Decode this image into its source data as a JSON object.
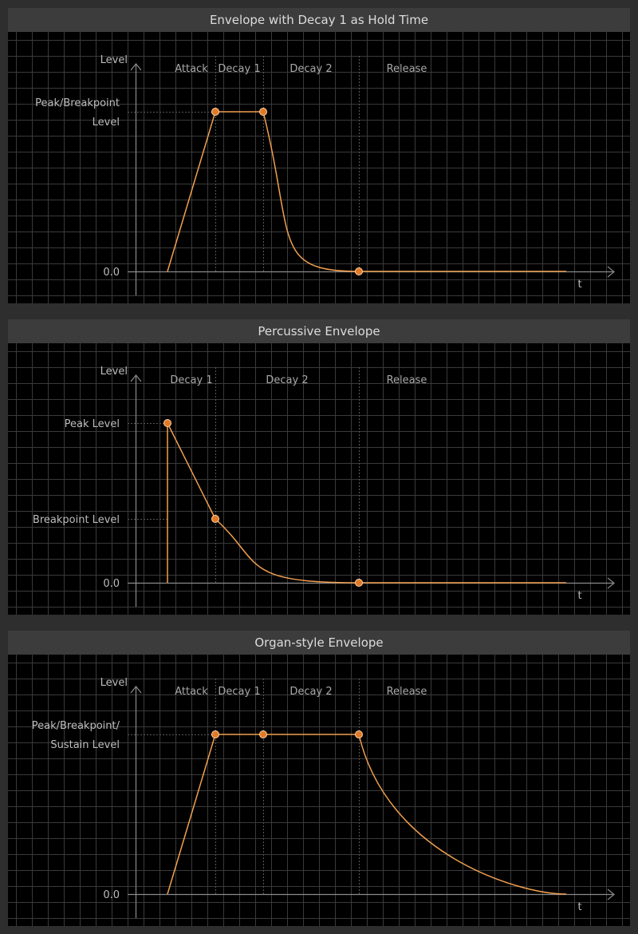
{
  "colors": {
    "background": "#000000",
    "panel_header": "#3c3c3c",
    "grid": "#3a3a3a",
    "axis": "#8a8a8a",
    "divider": "#5a5a5a",
    "curve": "#f0a050",
    "point_fill": "#e07a28"
  },
  "axes": {
    "y_label": "Level",
    "x_label": "t",
    "zero_label": "0.0"
  },
  "panels": [
    {
      "title": "Envelope with Decay 1 as Hold Time",
      "segments": [
        "Attack",
        "Decay 1",
        "Decay 2",
        "Release"
      ],
      "levels": [
        {
          "lines": [
            "Peak/Breakpoint",
            "Level"
          ],
          "value": 1.0
        },
        {
          "lines": [
            "0.0"
          ],
          "value": 0.0
        }
      ],
      "boundaries_t": [
        1.0,
        2.0,
        4.0
      ],
      "points": [
        {
          "t": 1.0,
          "level": 1.0
        },
        {
          "t": 2.0,
          "level": 1.0
        },
        {
          "t": 4.0,
          "level": 0.0
        }
      ]
    },
    {
      "title": "Percussive Envelope",
      "segments": [
        "Decay 1",
        "Decay 2",
        "Release"
      ],
      "levels": [
        {
          "lines": [
            "Peak Level"
          ],
          "value": 1.0
        },
        {
          "lines": [
            "Breakpoint Level"
          ],
          "value": 0.4
        },
        {
          "lines": [
            "0.0"
          ],
          "value": 0.0
        }
      ],
      "boundaries_t": [
        1.0,
        4.0
      ],
      "points": [
        {
          "t": 0.0,
          "level": 1.0
        },
        {
          "t": 1.0,
          "level": 0.4
        },
        {
          "t": 4.0,
          "level": 0.0
        }
      ]
    },
    {
      "title": "Organ-style Envelope",
      "segments": [
        "Attack",
        "Decay 1",
        "Decay 2",
        "Release"
      ],
      "levels": [
        {
          "lines": [
            "Peak/Breakpoint/",
            "Sustain Level"
          ],
          "value": 1.0
        },
        {
          "lines": [
            "0.0"
          ],
          "value": 0.0
        }
      ],
      "boundaries_t": [
        1.0,
        2.0,
        4.0
      ],
      "points": [
        {
          "t": 1.0,
          "level": 1.0
        },
        {
          "t": 2.0,
          "level": 1.0
        },
        {
          "t": 4.0,
          "level": 1.0
        }
      ]
    }
  ]
}
